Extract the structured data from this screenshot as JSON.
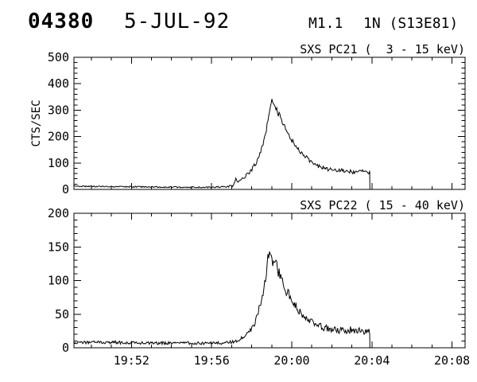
{
  "header": {
    "event_number": "04380",
    "date": "5-JUL-92",
    "xray_class": "M1.1",
    "optical_class_and_location": "1N (S13E81)"
  },
  "chart_data": [
    {
      "type": "line",
      "title": "SXS PC21 (  3 - 15 keV)",
      "instrument": "SXS PC21",
      "energy_band": "3 - 15 keV",
      "ylabel": "CTS/SEC",
      "ylim": [
        0,
        500
      ],
      "yticks": [
        0,
        100,
        200,
        300,
        400,
        500
      ],
      "y_minor_step": 20,
      "x_domain_minutes_after_1948": [
        1.13,
        20.65
      ],
      "x_ticks": [
        {
          "t": 4,
          "label": "19:52"
        },
        {
          "t": 8,
          "label": "19:56"
        },
        {
          "t": 12,
          "label": "20:00"
        },
        {
          "t": 16,
          "label": "20:04"
        },
        {
          "t": 20,
          "label": "20:08"
        }
      ],
      "x_minor_step": 1,
      "grid": false,
      "series": [
        {
          "name": "counts",
          "envelope": [
            [
              1.13,
              12
            ],
            [
              2.5,
              11
            ],
            [
              4,
              10
            ],
            [
              5.5,
              9
            ],
            [
              7,
              8
            ],
            [
              8,
              8
            ],
            [
              8.7,
              10
            ],
            [
              9.1,
              14
            ],
            [
              9.22,
              42
            ],
            [
              9.32,
              28
            ],
            [
              9.5,
              38
            ],
            [
              9.75,
              52
            ],
            [
              10.0,
              75
            ],
            [
              10.25,
              105
            ],
            [
              10.5,
              150
            ],
            [
              10.7,
              215
            ],
            [
              10.85,
              290
            ],
            [
              11.0,
              348
            ],
            [
              11.15,
              322
            ],
            [
              11.35,
              285
            ],
            [
              11.6,
              240
            ],
            [
              11.85,
              200
            ],
            [
              12.15,
              172
            ],
            [
              12.5,
              135
            ],
            [
              12.9,
              108
            ],
            [
              13.3,
              88
            ],
            [
              13.8,
              77
            ],
            [
              14.3,
              72
            ],
            [
              14.8,
              70
            ],
            [
              15.2,
              64
            ],
            [
              15.55,
              68
            ],
            [
              15.9,
              66
            ]
          ],
          "noise_amp": [
            [
              1.13,
              2.5
            ],
            [
              8.5,
              2.5
            ],
            [
              9.3,
              5
            ],
            [
              10.2,
              9
            ],
            [
              10.8,
              14
            ],
            [
              11.4,
              13
            ],
            [
              12.5,
              9
            ],
            [
              13.5,
              7
            ],
            [
              15.9,
              8
            ]
          ],
          "end_minute": 15.9,
          "drops_to_zero_at_end": true
        }
      ],
      "annotations": {
        "peak_counts": 350,
        "peak_time": "19:59",
        "baseline_counts": 10,
        "post_flare_counts": 70,
        "data_end_time": "20:04"
      }
    },
    {
      "type": "line",
      "title": "SXS PC22 ( 15 - 40 keV)",
      "instrument": "SXS PC22",
      "energy_band": "15 - 40 keV",
      "ylabel": "",
      "ylim": [
        0,
        200
      ],
      "yticks": [
        0,
        50,
        100,
        150,
        200
      ],
      "y_minor_step": 10,
      "x_domain_minutes_after_1948": [
        1.13,
        20.65
      ],
      "x_ticks": [
        {
          "t": 4,
          "label": "19:52"
        },
        {
          "t": 8,
          "label": "19:56"
        },
        {
          "t": 12,
          "label": "20:00"
        },
        {
          "t": 16,
          "label": "20:04"
        },
        {
          "t": 20,
          "label": "20:08"
        }
      ],
      "x_minor_step": 1,
      "grid": false,
      "series": [
        {
          "name": "counts",
          "envelope": [
            [
              1.13,
              8
            ],
            [
              3,
              8
            ],
            [
              5,
              7
            ],
            [
              7,
              7
            ],
            [
              8.5,
              7
            ],
            [
              9.2,
              9
            ],
            [
              9.6,
              16
            ],
            [
              10.0,
              28
            ],
            [
              10.2,
              40
            ],
            [
              10.45,
              65
            ],
            [
              10.65,
              95
            ],
            [
              10.8,
              130
            ],
            [
              10.9,
              150
            ],
            [
              10.97,
              140
            ],
            [
              11.05,
              126
            ],
            [
              11.15,
              133
            ],
            [
              11.3,
              116
            ],
            [
              11.45,
              103
            ],
            [
              11.6,
              90
            ],
            [
              11.8,
              82
            ],
            [
              12.0,
              73
            ],
            [
              12.3,
              57
            ],
            [
              12.6,
              47
            ],
            [
              13.0,
              38
            ],
            [
              13.5,
              31
            ],
            [
              14.0,
              28
            ],
            [
              14.5,
              26
            ],
            [
              15.0,
              27
            ],
            [
              15.5,
              24
            ],
            [
              15.9,
              25
            ]
          ],
          "noise_amp": [
            [
              1.13,
              2.2
            ],
            [
              8.8,
              2.2
            ],
            [
              9.9,
              2.5
            ],
            [
              10.4,
              6
            ],
            [
              10.9,
              9
            ],
            [
              11.5,
              8
            ],
            [
              12.3,
              6
            ],
            [
              13.0,
              5
            ],
            [
              14.0,
              5.5
            ],
            [
              15.9,
              5.5
            ]
          ],
          "end_minute": 15.9,
          "drops_to_zero_at_end": true
        }
      ],
      "annotations": {
        "peak_counts": 155,
        "peak_time": "19:59",
        "baseline_counts": 8,
        "post_flare_counts": 25,
        "data_end_time": "20:04"
      }
    }
  ],
  "colors": {
    "foreground": "#000000",
    "background": "#ffffff"
  }
}
